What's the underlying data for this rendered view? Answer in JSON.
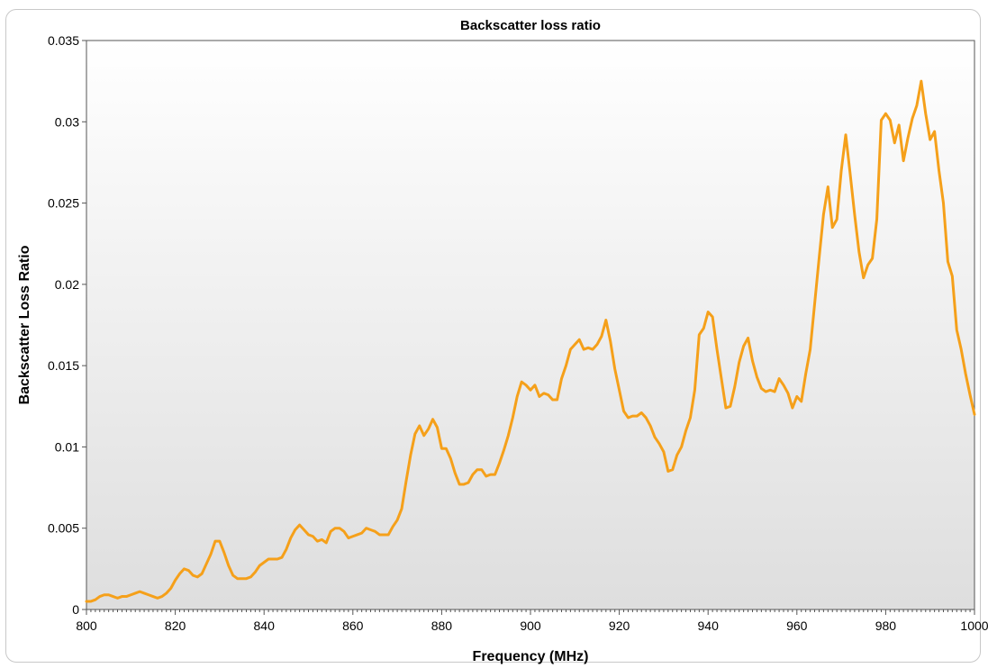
{
  "chart_data": {
    "type": "line",
    "title": "Backscatter loss ratio",
    "xlabel": "Frequency (MHz)",
    "ylabel": "Backscatter Loss Ratio",
    "xlim": [
      800,
      1000
    ],
    "ylim": [
      0,
      0.035
    ],
    "x_ticks": [
      800,
      820,
      840,
      860,
      880,
      900,
      920,
      940,
      960,
      980,
      1000
    ],
    "x_tick_labels": [
      "800",
      "820",
      "840",
      "860",
      "880",
      "900",
      "920",
      "940",
      "960",
      "980",
      "1000"
    ],
    "y_ticks": [
      0,
      0.005,
      0.01,
      0.015,
      0.02,
      0.025,
      0.03,
      0.035
    ],
    "y_tick_labels": [
      "0",
      "0.005",
      "0.01",
      "0.015",
      "0.02",
      "0.025",
      "0.03",
      "0.035"
    ],
    "grid": false,
    "line_color": "#f5a01a",
    "series": [
      {
        "x": [
          800,
          801,
          802,
          803,
          804,
          805,
          806,
          807,
          808,
          809,
          810,
          811,
          812,
          813,
          814,
          815,
          816,
          817,
          818,
          819,
          820,
          821,
          822,
          823,
          824,
          825,
          826,
          827,
          828,
          829,
          830,
          831,
          832,
          833,
          834,
          835,
          836,
          837,
          838,
          839,
          840,
          841,
          842,
          843,
          844,
          845,
          846,
          847,
          848,
          849,
          850,
          851,
          852,
          853,
          854,
          855,
          856,
          857,
          858,
          859,
          860,
          861,
          862,
          863,
          864,
          865,
          866,
          867,
          868,
          869,
          870,
          871,
          872,
          873,
          874,
          875,
          876,
          877,
          878,
          879,
          880,
          881,
          882,
          883,
          884,
          885,
          886,
          887,
          888,
          889,
          890,
          891,
          892,
          893,
          894,
          895,
          896,
          897,
          898,
          899,
          900,
          901,
          902,
          903,
          904,
          905,
          906,
          907,
          908,
          909,
          910,
          911,
          912,
          913,
          914,
          915,
          916,
          917,
          918,
          919,
          920,
          921,
          922,
          923,
          924,
          925,
          926,
          927,
          928,
          929,
          930,
          931,
          932,
          933,
          934,
          935,
          936,
          937,
          938,
          939,
          940,
          941,
          942,
          943,
          944,
          945,
          946,
          947,
          948,
          949,
          950,
          951,
          952,
          953,
          954,
          955,
          956,
          957,
          958,
          959,
          960,
          961,
          962,
          963,
          964,
          965,
          966,
          967,
          968,
          969,
          970,
          971,
          972,
          973,
          974,
          975,
          976,
          977,
          978,
          979,
          980,
          981,
          982,
          983,
          984,
          985,
          986,
          987,
          988,
          989,
          990,
          991,
          992,
          993,
          994,
          995,
          996,
          997,
          998,
          999,
          1000
        ],
        "y": [
          0.0005,
          0.0005,
          0.0006,
          0.0008,
          0.0009,
          0.0009,
          0.0008,
          0.0007,
          0.0008,
          0.0008,
          0.0009,
          0.001,
          0.0011,
          0.001,
          0.0009,
          0.0008,
          0.0007,
          0.0008,
          0.001,
          0.0013,
          0.0018,
          0.0022,
          0.0025,
          0.0024,
          0.0021,
          0.002,
          0.0022,
          0.0028,
          0.0034,
          0.0042,
          0.0042,
          0.0035,
          0.0027,
          0.0021,
          0.0019,
          0.0019,
          0.0019,
          0.002,
          0.0023,
          0.0027,
          0.0029,
          0.0031,
          0.0031,
          0.0031,
          0.0032,
          0.0037,
          0.0044,
          0.0049,
          0.0052,
          0.0049,
          0.0046,
          0.0045,
          0.0042,
          0.0043,
          0.0041,
          0.0048,
          0.005,
          0.005,
          0.0048,
          0.0044,
          0.0045,
          0.0046,
          0.0047,
          0.005,
          0.0049,
          0.0048,
          0.0046,
          0.0046,
          0.0046,
          0.0051,
          0.0055,
          0.0062,
          0.0079,
          0.0095,
          0.0108,
          0.0113,
          0.0107,
          0.0111,
          0.0117,
          0.0112,
          0.0099,
          0.0099,
          0.0093,
          0.0084,
          0.0077,
          0.0077,
          0.0078,
          0.0083,
          0.0086,
          0.0086,
          0.0082,
          0.0083,
          0.0083,
          0.009,
          0.0098,
          0.0107,
          0.0118,
          0.0131,
          0.014,
          0.0138,
          0.0135,
          0.0138,
          0.0131,
          0.0133,
          0.0132,
          0.0129,
          0.0129,
          0.0142,
          0.015,
          0.016,
          0.0163,
          0.0166,
          0.016,
          0.0161,
          0.016,
          0.0163,
          0.0168,
          0.0178,
          0.0165,
          0.0148,
          0.0135,
          0.0122,
          0.0118,
          0.0119,
          0.0119,
          0.0121,
          0.0118,
          0.0113,
          0.0106,
          0.0102,
          0.0097,
          0.0085,
          0.0086,
          0.0095,
          0.01,
          0.011,
          0.0118,
          0.0135,
          0.0169,
          0.0173,
          0.0183,
          0.018,
          0.016,
          0.0142,
          0.0124,
          0.0125,
          0.0137,
          0.0152,
          0.0162,
          0.0167,
          0.0153,
          0.0143,
          0.0136,
          0.0134,
          0.0135,
          0.0134,
          0.0142,
          0.0138,
          0.0133,
          0.0124,
          0.0131,
          0.0128,
          0.0145,
          0.016,
          0.0188,
          0.0216,
          0.0243,
          0.026,
          0.0235,
          0.024,
          0.027,
          0.0292,
          0.0268,
          0.0243,
          0.022,
          0.0204,
          0.0212,
          0.0216,
          0.024,
          0.0301,
          0.0305,
          0.0301,
          0.0287,
          0.0298,
          0.0276,
          0.029,
          0.0302,
          0.031,
          0.0325,
          0.0305,
          0.0289,
          0.0294,
          0.027,
          0.025,
          0.0214,
          0.0205,
          0.0172,
          0.016,
          0.0145,
          0.0132,
          0.012
        ]
      }
    ]
  }
}
